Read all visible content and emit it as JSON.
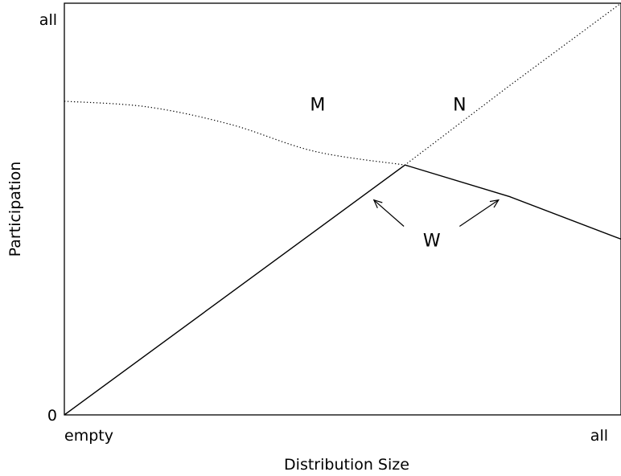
{
  "chart_data": {
    "type": "line",
    "xlabel": "Distribution Size",
    "ylabel": "Participation",
    "x_tick_labels": [
      "empty",
      "all"
    ],
    "y_tick_labels": [
      "0",
      "all"
    ],
    "xlim": [
      0,
      1
    ],
    "ylim": [
      0,
      1
    ],
    "grid": false,
    "legend": "none",
    "series": [
      {
        "style": "dotted",
        "points": [
          [
            0,
            0.762
          ],
          [
            0.15,
            0.748
          ],
          [
            0.3,
            0.705
          ],
          [
            0.45,
            0.64
          ],
          [
            0.612,
            0.607
          ],
          [
            0.8,
            0.8
          ],
          [
            1.0,
            1.0
          ]
        ]
      },
      {
        "style": "solid",
        "points": [
          [
            0,
            0
          ],
          [
            0.612,
            0.607
          ],
          [
            0.8,
            0.53
          ],
          [
            1.0,
            0.427
          ]
        ]
      }
    ],
    "annotations": [
      {
        "text": "M",
        "x": 0.455,
        "y": 0.755
      },
      {
        "text": "N",
        "x": 0.71,
        "y": 0.755
      },
      {
        "text": "W",
        "x": 0.66,
        "y": 0.425
      }
    ],
    "arrows": [
      {
        "from": [
          0.61,
          0.458
        ],
        "to": [
          0.556,
          0.522
        ]
      },
      {
        "from": [
          0.71,
          0.458
        ],
        "to": [
          0.78,
          0.522
        ]
      }
    ],
    "colors": {
      "line": "#000000",
      "background": "#ffffff"
    }
  }
}
